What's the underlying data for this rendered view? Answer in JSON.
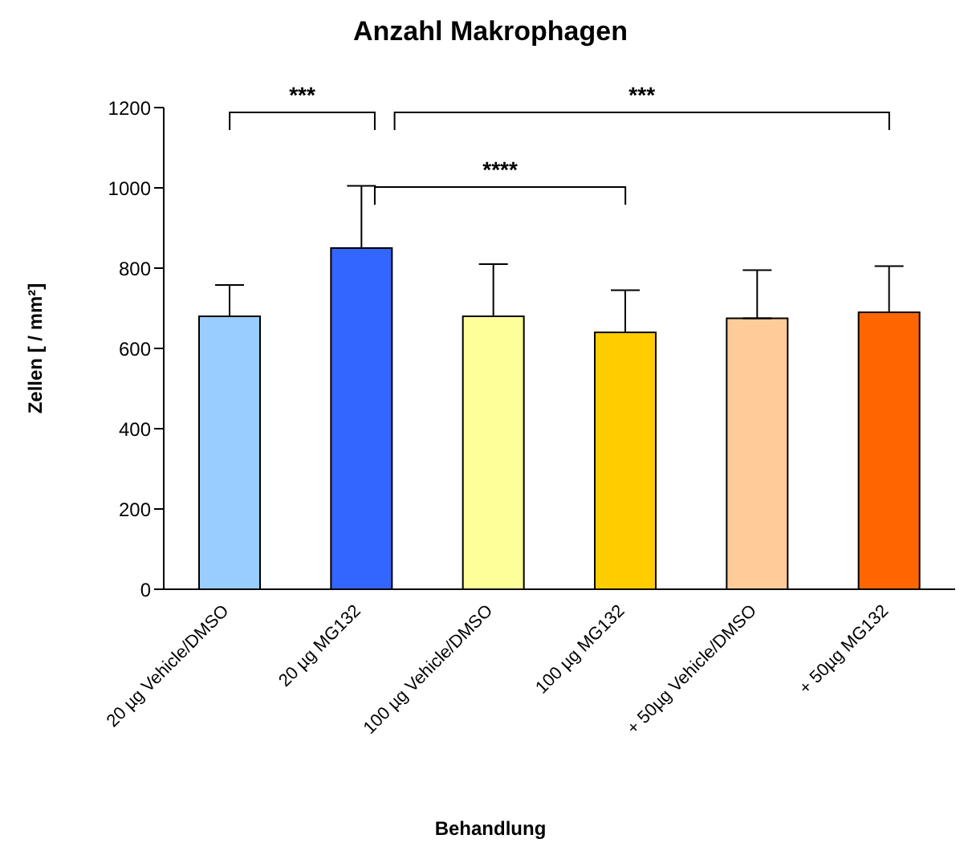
{
  "chart_data": {
    "type": "bar",
    "title": "Anzahl Makrophagen",
    "xlabel": "Behandlung",
    "ylabel": "Zellen [ / mm²]",
    "categories": [
      "20 µg Vehicle/DMSO",
      "20 µg MG132",
      "100 µg Vehicle/DMSO",
      "100 µg MG132",
      "+ 50µg Vehicle/DMSO",
      "+ 50µg MG132"
    ],
    "values": [
      680,
      850,
      680,
      640,
      675,
      690
    ],
    "colors": [
      "#99ccff",
      "#3366ff",
      "#ffff99",
      "#ffcc00",
      "#ffcc99",
      "#ff6600"
    ],
    "errors": [
      [
        680,
        758
      ],
      [
        850,
        1005
      ],
      [
        680,
        810
      ],
      [
        640,
        745
      ],
      [
        675,
        795
      ],
      [
        690,
        805
      ]
    ],
    "ylim": [
      0,
      1200
    ],
    "yticks": [
      0,
      200,
      400,
      600,
      800,
      1000,
      1200
    ],
    "annotations": [
      "***",
      "****",
      "***"
    ],
    "grid": false,
    "legend": false
  }
}
